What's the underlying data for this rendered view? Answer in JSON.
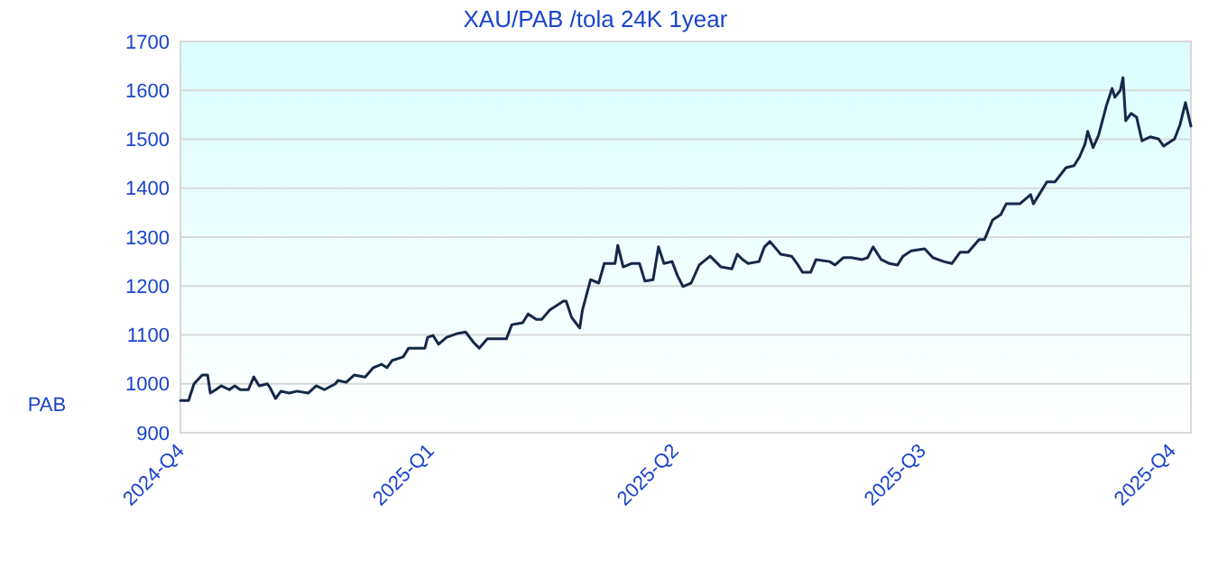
{
  "chart_data": {
    "type": "line",
    "title": "XAU/PAB /tola 24K 1year",
    "ylabel": "PAB",
    "xlim": [
      "2024-10-01",
      "2025-10-08"
    ],
    "xticks": [
      {
        "value": "2024-10-01",
        "label": "2024-Q4"
      },
      {
        "value": "2025-01-01",
        "label": "2025-Q1"
      },
      {
        "value": "2025-04-01",
        "label": "2025-Q2"
      },
      {
        "value": "2025-07-01",
        "label": "2025-Q3"
      },
      {
        "value": "2025-10-01",
        "label": "2025-Q4"
      }
    ],
    "ylim": [
      900,
      1700
    ],
    "yticks": [
      900,
      1000,
      1100,
      1200,
      1300,
      1400,
      1500,
      1600,
      1700
    ],
    "grid": "y",
    "marker": "none",
    "line_style": "solid",
    "x": [
      "2024-10-01",
      "2024-10-04",
      "2024-10-06",
      "2024-10-09",
      "2024-10-11",
      "2024-10-12",
      "2024-10-14",
      "2024-10-16",
      "2024-10-19",
      "2024-10-21",
      "2024-10-23",
      "2024-10-26",
      "2024-10-28",
      "2024-10-30",
      "2024-11-02",
      "2024-11-03",
      "2024-11-05",
      "2024-11-07",
      "2024-11-10",
      "2024-11-13",
      "2024-11-17",
      "2024-11-20",
      "2024-11-23",
      "2024-11-27",
      "2024-11-28",
      "2024-12-01",
      "2024-12-04",
      "2024-12-08",
      "2024-12-11",
      "2024-12-14",
      "2024-12-16",
      "2024-12-18",
      "2024-12-22",
      "2024-12-24",
      "2024-12-30",
      "2024-12-31",
      "2025-01-02",
      "2025-01-04",
      "2025-01-07",
      "2025-01-11",
      "2025-01-14",
      "2025-01-17",
      "2025-01-19",
      "2025-01-22",
      "2025-01-29",
      "2025-01-31",
      "2025-02-04",
      "2025-02-06",
      "2025-02-09",
      "2025-02-11",
      "2025-02-14",
      "2025-02-19",
      "2025-02-20",
      "2025-02-22",
      "2025-02-25",
      "2025-02-26",
      "2025-03-01",
      "2025-03-04",
      "2025-03-06",
      "2025-03-10",
      "2025-03-11",
      "2025-03-13",
      "2025-03-16",
      "2025-03-19",
      "2025-03-21",
      "2025-03-24",
      "2025-03-26",
      "2025-03-28",
      "2025-03-31",
      "2025-04-02",
      "2025-04-04",
      "2025-04-07",
      "2025-04-10",
      "2025-04-14",
      "2025-04-16",
      "2025-04-18",
      "2025-04-22",
      "2025-04-24",
      "2025-04-26",
      "2025-04-28",
      "2025-05-02",
      "2025-05-04",
      "2025-05-06",
      "2025-05-10",
      "2025-05-14",
      "2025-05-16",
      "2025-05-18",
      "2025-05-21",
      "2025-05-23",
      "2025-05-28",
      "2025-05-30",
      "2025-06-02",
      "2025-06-05",
      "2025-06-09",
      "2025-06-11",
      "2025-06-13",
      "2025-06-16",
      "2025-06-19",
      "2025-06-22",
      "2025-06-24",
      "2025-06-27",
      "2025-07-02",
      "2025-07-05",
      "2025-07-09",
      "2025-07-12",
      "2025-07-15",
      "2025-07-18",
      "2025-07-22",
      "2025-07-24",
      "2025-07-27",
      "2025-07-30",
      "2025-08-01",
      "2025-08-06",
      "2025-08-10",
      "2025-08-11",
      "2025-08-16",
      "2025-08-19",
      "2025-08-23",
      "2025-08-26",
      "2025-08-28",
      "2025-08-30",
      "2025-08-31",
      "2025-09-02",
      "2025-09-04",
      "2025-09-07",
      "2025-09-09",
      "2025-09-10",
      "2025-09-12",
      "2025-09-13",
      "2025-09-14",
      "2025-09-16",
      "2025-09-18",
      "2025-09-20",
      "2025-09-23",
      "2025-09-26",
      "2025-09-28",
      "2025-10-02",
      "2025-10-04",
      "2025-10-06",
      "2025-10-08"
    ],
    "series": [
      {
        "color": "#15284a",
        "values": [
          966,
          966,
          1000,
          1018,
          1018,
          981,
          988,
          996,
          988,
          996,
          988,
          988,
          1014,
          996,
          1000,
          992,
          970,
          985,
          981,
          985,
          981,
          996,
          988,
          1000,
          1007,
          1003,
          1018,
          1014,
          1033,
          1040,
          1033,
          1048,
          1055,
          1073,
          1073,
          1095,
          1099,
          1081,
          1095,
          1103,
          1106,
          1084,
          1073,
          1092,
          1092,
          1121,
          1125,
          1143,
          1132,
          1132,
          1151,
          1169,
          1169,
          1136,
          1114,
          1151,
          1213,
          1206,
          1246,
          1246,
          1283,
          1239,
          1246,
          1246,
          1210,
          1213,
          1280,
          1246,
          1250,
          1221,
          1199,
          1206,
          1243,
          1261,
          1250,
          1239,
          1235,
          1265,
          1254,
          1246,
          1250,
          1280,
          1291,
          1265,
          1261,
          1246,
          1228,
          1228,
          1254,
          1250,
          1243,
          1258,
          1258,
          1254,
          1258,
          1280,
          1254,
          1246,
          1243,
          1261,
          1272,
          1276,
          1258,
          1250,
          1246,
          1269,
          1269,
          1295,
          1295,
          1335,
          1346,
          1368,
          1368,
          1387,
          1368,
          1413,
          1413,
          1442,
          1446,
          1464,
          1490,
          1516,
          1483,
          1508,
          1571,
          1604,
          1586,
          1600,
          1626,
          1538,
          1553,
          1545,
          1497,
          1505,
          1501,
          1486,
          1501,
          1530,
          1575,
          1527
        ]
      }
    ]
  }
}
